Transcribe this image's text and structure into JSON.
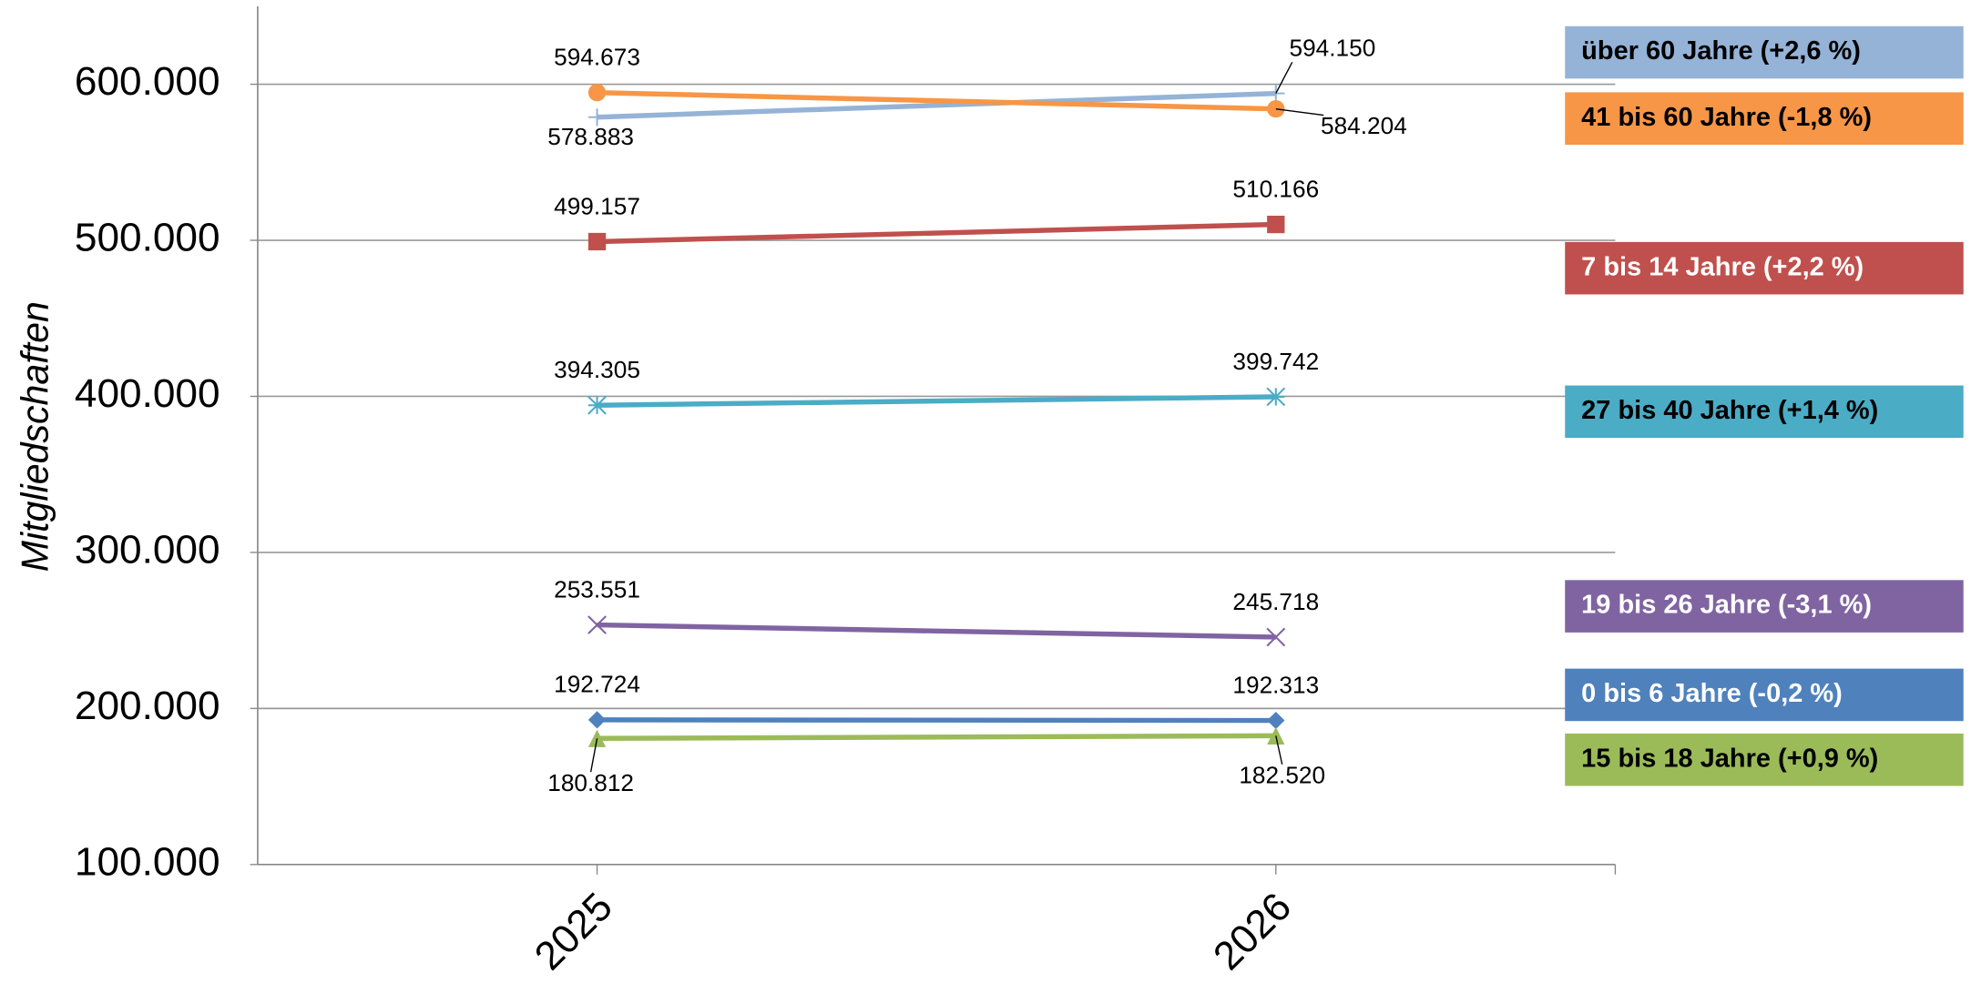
{
  "chart_data": {
    "type": "line",
    "y_label": "Mitgliedschaften",
    "categories": [
      "2025",
      "2026"
    ],
    "ylim": [
      100000,
      650000
    ],
    "yticks": [
      {
        "value": 100000,
        "label": "100.000"
      },
      {
        "value": 200000,
        "label": "200.000"
      },
      {
        "value": 300000,
        "label": "300.000"
      },
      {
        "value": 400000,
        "label": "400.000"
      },
      {
        "value": 500000,
        "label": "500.000"
      },
      {
        "value": 600000,
        "label": "600.000"
      }
    ],
    "grid": true,
    "series": [
      {
        "name": "über 60 Jahre (+2,6 %)",
        "color": "#95b3d7",
        "marker": "plus",
        "values": [
          578883,
          594150
        ],
        "value_labels": [
          "578.883",
          "594.150"
        ]
      },
      {
        "name": "41 bis 60 Jahre (-1,8 %)",
        "color": "#f79646",
        "marker": "circle",
        "values": [
          594673,
          584204
        ],
        "value_labels": [
          "594.673",
          "584.204"
        ]
      },
      {
        "name": "7 bis 14 Jahre (+2,2 %)",
        "color": "#c0504d",
        "marker": "square",
        "values": [
          499157,
          510166
        ],
        "value_labels": [
          "499.157",
          "510.166"
        ]
      },
      {
        "name": "27 bis 40 Jahre (+1,4 %)",
        "color": "#4bacc6",
        "marker": "asterisk",
        "values": [
          394305,
          399742
        ],
        "value_labels": [
          "394.305",
          "399.742"
        ]
      },
      {
        "name": "19 bis 26 Jahre (-3,1 %)",
        "color": "#8064a2",
        "marker": "x",
        "values": [
          253551,
          245718
        ],
        "value_labels": [
          "253.551",
          "245.718"
        ]
      },
      {
        "name": "0 bis 6 Jahre (-0,2 %)",
        "color": "#4f81bd",
        "marker": "diamond",
        "values": [
          192724,
          192313
        ],
        "value_labels": [
          "192.724",
          "192.313"
        ]
      },
      {
        "name": "15 bis 18 Jahre (+0,9 %)",
        "color": "#9bbb59",
        "marker": "triangle",
        "values": [
          180812,
          182520
        ],
        "value_labels": [
          "180.812",
          "182.520"
        ]
      }
    ]
  }
}
